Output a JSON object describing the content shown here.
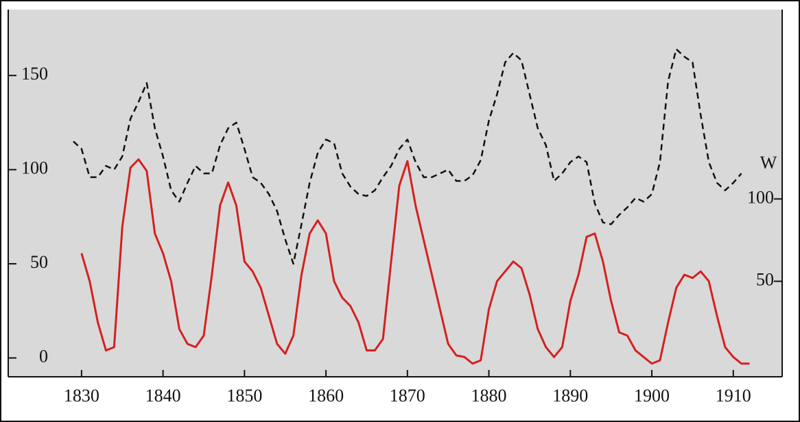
{
  "chart_data": {
    "type": "line",
    "x": [
      1829,
      1830,
      1831,
      1832,
      1833,
      1834,
      1835,
      1836,
      1837,
      1838,
      1839,
      1840,
      1841,
      1842,
      1843,
      1844,
      1845,
      1846,
      1847,
      1848,
      1849,
      1850,
      1851,
      1852,
      1853,
      1854,
      1855,
      1856,
      1857,
      1858,
      1859,
      1860,
      1861,
      1862,
      1863,
      1864,
      1865,
      1866,
      1867,
      1868,
      1869,
      1870,
      1871,
      1872,
      1873,
      1874,
      1875,
      1876,
      1877,
      1878,
      1879,
      1880,
      1881,
      1882,
      1883,
      1884,
      1885,
      1886,
      1887,
      1888,
      1889,
      1890,
      1891,
      1892,
      1893,
      1894,
      1895,
      1896,
      1897,
      1898,
      1899,
      1900,
      1901,
      1902,
      1903,
      1904,
      1905,
      1906,
      1907,
      1908,
      1909,
      1910,
      1911,
      1912
    ],
    "series": [
      {
        "color": "#111111",
        "dash": true,
        "values": [
          115,
          111,
          96,
          96,
          102,
          100,
          107,
          127,
          136,
          146,
          122,
          107,
          89,
          83,
          93,
          102,
          98,
          98,
          113,
          122,
          125,
          111,
          96,
          93,
          87,
          78,
          63,
          50,
          71,
          93,
          109,
          116,
          114,
          98,
          91,
          87,
          86,
          89,
          96,
          102,
          111,
          116,
          104,
          96,
          96,
          98,
          100,
          94,
          94,
          97,
          105,
          126,
          140,
          157,
          162,
          158,
          140,
          122,
          113,
          94,
          98,
          104,
          107,
          104,
          82,
          72,
          71,
          76,
          80,
          85,
          83,
          87,
          104,
          147,
          164,
          160,
          157,
          129,
          104,
          93,
          89,
          93,
          98,
          null
        ]
      },
      {
        "color": "#d42020",
        "axis": "y2",
        "values": [
          null,
          67,
          50,
          25,
          8,
          10,
          83,
          119,
          124,
          117,
          79,
          67,
          50,
          21,
          12,
          10,
          17,
          54,
          96,
          110,
          96,
          62,
          56,
          46,
          29,
          12,
          6,
          17,
          54,
          79,
          87,
          79,
          50,
          40,
          35,
          25,
          8,
          8,
          15,
          62,
          108,
          123,
          96,
          75,
          54,
          33,
          12,
          5,
          4,
          0,
          2,
          33,
          50,
          56,
          62,
          58,
          42,
          21,
          10,
          4,
          10,
          38,
          54,
          77,
          79,
          62,
          38,
          19,
          17,
          8,
          4,
          0,
          2,
          25,
          46,
          54,
          52,
          56,
          50,
          29,
          10,
          4,
          0,
          0
        ]
      }
    ],
    "xlim": [
      1821,
      1916
    ],
    "xticks": [
      1830,
      1840,
      1850,
      1860,
      1870,
      1880,
      1890,
      1900,
      1910
    ],
    "ylim": [
      -10,
      185
    ],
    "yticks": [
      0,
      50,
      100,
      150
    ],
    "y2lim": [
      -8,
      215
    ],
    "y2ticks": [
      50,
      100
    ],
    "y2label": "W"
  }
}
